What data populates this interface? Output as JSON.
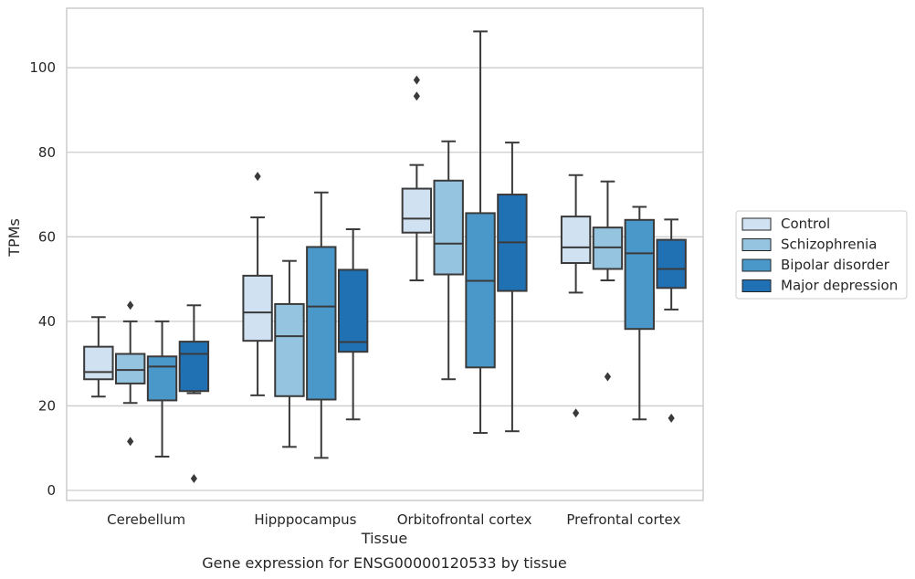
{
  "chart_data": {
    "type": "box",
    "xlabel": "Tissue",
    "ylabel": "TPMs",
    "caption": "Gene expression for ENSG00000120533 by tissue",
    "ylim": [
      -2,
      114
    ],
    "yticks": [
      0,
      20,
      40,
      60,
      80,
      100
    ],
    "grid": "horizontal",
    "legend_position": "right",
    "categories": [
      "Cerebellum",
      "Hipppocampus",
      "Orbitofrontal cortex",
      "Prefrontal cortex"
    ],
    "series": [
      {
        "name": "Control",
        "color": "#d0e1f2",
        "boxes": [
          {
            "whislo": 22.2,
            "q1": 26.3,
            "med": 28.0,
            "q3": 34.0,
            "whishi": 41.0,
            "fliers": []
          },
          {
            "whislo": 22.5,
            "q1": 35.4,
            "med": 42.1,
            "q3": 50.8,
            "whishi": 64.6,
            "fliers": [
              74.3
            ]
          },
          {
            "whislo": 49.7,
            "q1": 61.0,
            "med": 64.3,
            "q3": 71.4,
            "whishi": 77.0,
            "fliers": [
              93.3,
              97.1
            ]
          },
          {
            "whislo": 46.8,
            "q1": 53.8,
            "med": 57.5,
            "q3": 64.8,
            "whishi": 74.6,
            "fliers": [
              18.3
            ]
          }
        ]
      },
      {
        "name": "Schizophrenia",
        "color": "#94c4df",
        "boxes": [
          {
            "whislo": 20.7,
            "q1": 25.3,
            "med": 28.5,
            "q3": 32.3,
            "whishi": 40.0,
            "fliers": [
              11.6,
              43.8
            ]
          },
          {
            "whislo": 10.3,
            "q1": 22.3,
            "med": 36.5,
            "q3": 44.1,
            "whishi": 54.3,
            "fliers": []
          },
          {
            "whislo": 26.3,
            "q1": 51.1,
            "med": 58.4,
            "q3": 73.3,
            "whishi": 82.6,
            "fliers": []
          },
          {
            "whislo": 49.7,
            "q1": 52.4,
            "med": 57.5,
            "q3": 62.2,
            "whishi": 73.1,
            "fliers": [
              26.9
            ]
          }
        ]
      },
      {
        "name": "Bipolar disorder",
        "color": "#4a98c9",
        "boxes": [
          {
            "whislo": 8.0,
            "q1": 21.3,
            "med": 29.3,
            "q3": 31.7,
            "whishi": 40.0,
            "fliers": []
          },
          {
            "whislo": 7.7,
            "q1": 21.5,
            "med": 43.5,
            "q3": 57.6,
            "whishi": 70.5,
            "fliers": []
          },
          {
            "whislo": 13.6,
            "q1": 29.1,
            "med": 49.6,
            "q3": 65.6,
            "whishi": 108.6,
            "fliers": []
          },
          {
            "whislo": 16.8,
            "q1": 38.2,
            "med": 56.1,
            "q3": 64.0,
            "whishi": 67.1,
            "fliers": []
          }
        ]
      },
      {
        "name": "Major depression",
        "color": "#2070b4",
        "boxes": [
          {
            "whislo": 23.0,
            "q1": 23.5,
            "med": 32.3,
            "q3": 35.2,
            "whishi": 43.8,
            "fliers": [
              2.8
            ]
          },
          {
            "whislo": 16.8,
            "q1": 32.8,
            "med": 35.1,
            "q3": 52.2,
            "whishi": 61.8,
            "fliers": []
          },
          {
            "whislo": 14.0,
            "q1": 47.2,
            "med": 58.7,
            "q3": 70.0,
            "whishi": 82.3,
            "fliers": []
          },
          {
            "whislo": 42.8,
            "q1": 47.9,
            "med": 52.4,
            "q3": 59.3,
            "whishi": 64.1,
            "fliers": [
              17.1
            ]
          }
        ]
      }
    ]
  }
}
